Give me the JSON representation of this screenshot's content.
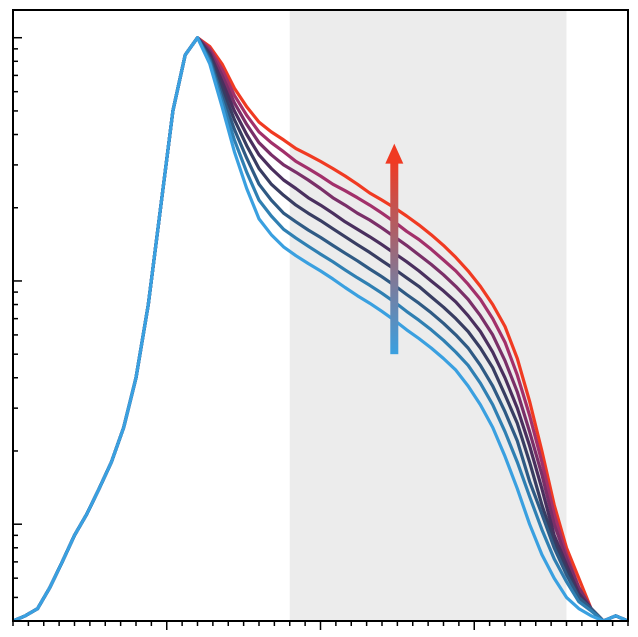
{
  "chart_data": {
    "type": "line",
    "title": "",
    "xlabel": "",
    "ylabel": "",
    "yscale": "log",
    "xlim": [
      0,
      100
    ],
    "ylim": [
      0.004,
      1.3
    ],
    "grid": false,
    "legend": "none",
    "shaded_region": {
      "x_start": 45,
      "x_end": 90,
      "color": "#ececec"
    },
    "trend_arrow": {
      "x": 62,
      "y_from": 0.05,
      "y_to": 0.36,
      "color_from": "#3aa0e0",
      "color_to": "#f03a22"
    },
    "x": [
      0,
      2,
      4,
      6,
      8,
      10,
      12,
      14,
      16,
      18,
      20,
      22,
      24,
      26,
      28,
      30,
      32,
      34,
      36,
      38,
      40,
      42,
      44,
      46,
      48,
      50,
      52,
      54,
      56,
      58,
      60,
      62,
      64,
      66,
      68,
      70,
      72,
      74,
      76,
      78,
      80,
      82,
      84,
      86,
      88,
      90,
      92,
      94,
      96,
      98,
      100
    ],
    "series": [
      {
        "color": "#f03a22",
        "values": [
          0.004,
          0.0042,
          0.0045,
          0.0055,
          0.007,
          0.009,
          0.011,
          0.014,
          0.018,
          0.025,
          0.04,
          0.08,
          0.2,
          0.5,
          0.85,
          1.0,
          0.92,
          0.78,
          0.62,
          0.52,
          0.45,
          0.41,
          0.38,
          0.35,
          0.33,
          0.31,
          0.29,
          0.27,
          0.25,
          0.23,
          0.215,
          0.2,
          0.185,
          0.17,
          0.155,
          0.14,
          0.125,
          0.11,
          0.095,
          0.08,
          0.065,
          0.048,
          0.032,
          0.02,
          0.012,
          0.008,
          0.006,
          0.0045,
          0.004,
          0.0042,
          0.004
        ]
      },
      {
        "color": "#a2306a",
        "values": [
          0.004,
          0.0042,
          0.0045,
          0.0055,
          0.007,
          0.009,
          0.011,
          0.014,
          0.018,
          0.025,
          0.04,
          0.08,
          0.2,
          0.5,
          0.85,
          1.0,
          0.9,
          0.74,
          0.58,
          0.48,
          0.41,
          0.37,
          0.34,
          0.31,
          0.29,
          0.27,
          0.25,
          0.235,
          0.22,
          0.205,
          0.19,
          0.175,
          0.16,
          0.148,
          0.135,
          0.122,
          0.11,
          0.097,
          0.084,
          0.07,
          0.056,
          0.041,
          0.028,
          0.018,
          0.011,
          0.0075,
          0.0055,
          0.0045,
          0.004,
          0.0042,
          0.004
        ]
      },
      {
        "color": "#7a2f68",
        "values": [
          0.004,
          0.0042,
          0.0045,
          0.0055,
          0.007,
          0.009,
          0.011,
          0.014,
          0.018,
          0.025,
          0.04,
          0.08,
          0.2,
          0.5,
          0.85,
          1.0,
          0.88,
          0.7,
          0.54,
          0.44,
          0.37,
          0.33,
          0.3,
          0.28,
          0.26,
          0.24,
          0.22,
          0.205,
          0.19,
          0.178,
          0.165,
          0.152,
          0.14,
          0.128,
          0.117,
          0.106,
          0.095,
          0.084,
          0.072,
          0.06,
          0.047,
          0.035,
          0.024,
          0.016,
          0.01,
          0.0072,
          0.0055,
          0.0045,
          0.004,
          0.0042,
          0.004
        ]
      },
      {
        "color": "#4a2f5e",
        "values": [
          0.004,
          0.0042,
          0.0045,
          0.0055,
          0.007,
          0.009,
          0.011,
          0.014,
          0.018,
          0.025,
          0.04,
          0.08,
          0.2,
          0.5,
          0.85,
          1.0,
          0.86,
          0.66,
          0.5,
          0.4,
          0.33,
          0.29,
          0.26,
          0.24,
          0.22,
          0.205,
          0.19,
          0.175,
          0.163,
          0.152,
          0.141,
          0.13,
          0.12,
          0.11,
          0.1,
          0.091,
          0.082,
          0.072,
          0.062,
          0.051,
          0.04,
          0.03,
          0.021,
          0.014,
          0.009,
          0.0068,
          0.0052,
          0.0045,
          0.004,
          0.0042,
          0.004
        ]
      },
      {
        "color": "#383d62",
        "values": [
          0.004,
          0.0042,
          0.0045,
          0.0055,
          0.007,
          0.009,
          0.011,
          0.014,
          0.018,
          0.025,
          0.04,
          0.08,
          0.2,
          0.5,
          0.85,
          1.0,
          0.84,
          0.62,
          0.46,
          0.36,
          0.29,
          0.25,
          0.225,
          0.205,
          0.19,
          0.177,
          0.164,
          0.152,
          0.141,
          0.131,
          0.121,
          0.112,
          0.103,
          0.095,
          0.086,
          0.078,
          0.07,
          0.062,
          0.053,
          0.044,
          0.034,
          0.026,
          0.018,
          0.012,
          0.0085,
          0.0065,
          0.005,
          0.0045,
          0.004,
          0.0042,
          0.004
        ]
      },
      {
        "color": "#2f5a84",
        "values": [
          0.004,
          0.0042,
          0.0045,
          0.0055,
          0.007,
          0.009,
          0.011,
          0.014,
          0.018,
          0.025,
          0.04,
          0.08,
          0.2,
          0.5,
          0.85,
          1.0,
          0.82,
          0.58,
          0.42,
          0.32,
          0.25,
          0.215,
          0.19,
          0.175,
          0.162,
          0.151,
          0.14,
          0.13,
          0.121,
          0.112,
          0.104,
          0.096,
          0.088,
          0.081,
          0.074,
          0.067,
          0.06,
          0.053,
          0.045,
          0.037,
          0.029,
          0.022,
          0.015,
          0.011,
          0.008,
          0.0062,
          0.005,
          0.0045,
          0.004,
          0.0042,
          0.004
        ]
      },
      {
        "color": "#2f7fb2",
        "values": [
          0.004,
          0.0042,
          0.0045,
          0.0055,
          0.007,
          0.009,
          0.011,
          0.014,
          0.018,
          0.025,
          0.04,
          0.08,
          0.2,
          0.5,
          0.85,
          1.0,
          0.8,
          0.55,
          0.38,
          0.28,
          0.215,
          0.185,
          0.163,
          0.15,
          0.139,
          0.129,
          0.12,
          0.111,
          0.103,
          0.096,
          0.089,
          0.082,
          0.075,
          0.069,
          0.063,
          0.057,
          0.051,
          0.045,
          0.038,
          0.031,
          0.024,
          0.018,
          0.013,
          0.0095,
          0.0072,
          0.0058,
          0.0048,
          0.0044,
          0.004,
          0.0042,
          0.004
        ]
      },
      {
        "color": "#3aa0e0",
        "values": [
          0.004,
          0.0042,
          0.0045,
          0.0055,
          0.007,
          0.009,
          0.011,
          0.014,
          0.018,
          0.025,
          0.04,
          0.08,
          0.2,
          0.5,
          0.85,
          1.0,
          0.78,
          0.52,
          0.34,
          0.24,
          0.18,
          0.155,
          0.138,
          0.127,
          0.118,
          0.11,
          0.102,
          0.094,
          0.087,
          0.081,
          0.075,
          0.069,
          0.063,
          0.058,
          0.053,
          0.048,
          0.043,
          0.037,
          0.031,
          0.025,
          0.019,
          0.014,
          0.01,
          0.0075,
          0.006,
          0.005,
          0.0045,
          0.0042,
          0.004,
          0.0042,
          0.004
        ]
      }
    ]
  }
}
